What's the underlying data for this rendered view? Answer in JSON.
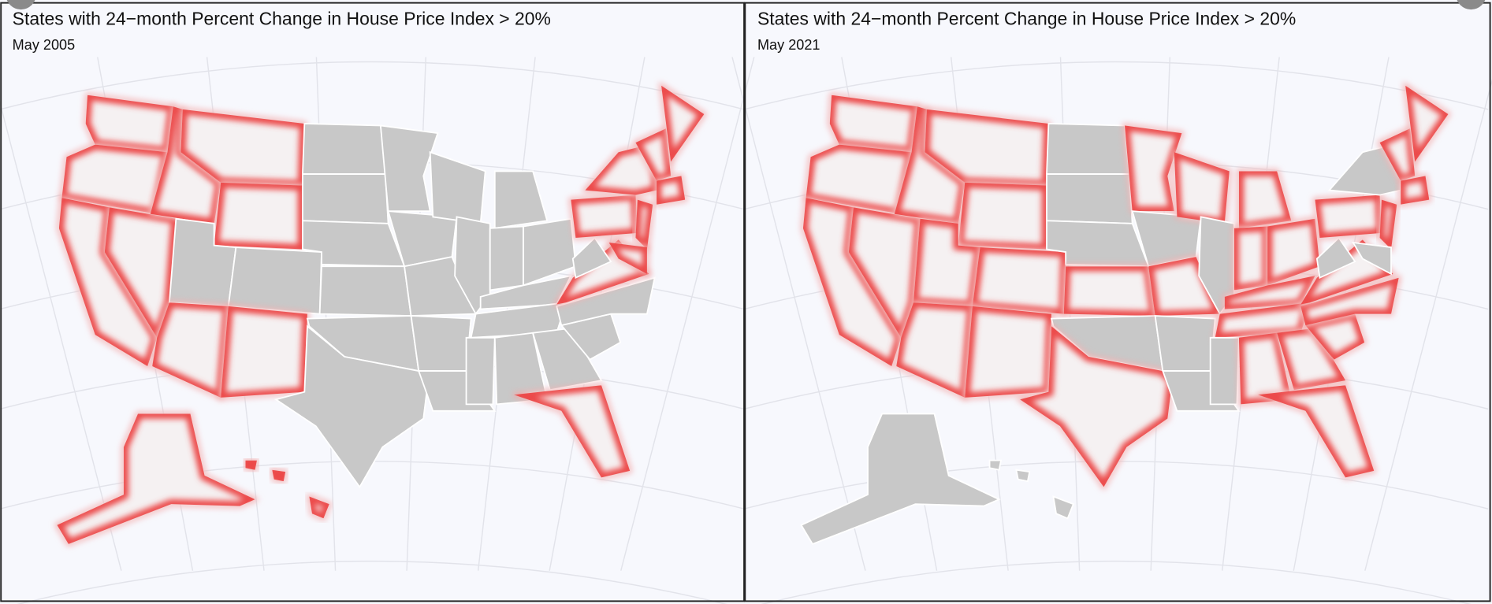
{
  "panels": [
    {
      "title": "States with 24−month Percent Change in House Price Index > 20%",
      "subtitle": "May 2005"
    },
    {
      "title": "States with 24−month Percent Change in House Price Index > 20%",
      "subtitle": "May 2021"
    }
  ]
}
